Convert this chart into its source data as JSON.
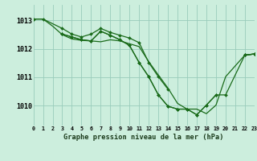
{
  "background_color": "#cceedd",
  "grid_color": "#99ccbb",
  "line_color": "#1a6b1a",
  "marker_color": "#1a6b1a",
  "title": "Graphe pression niveau de la mer (hPa)",
  "xlim": [
    0,
    23
  ],
  "ylim": [
    1009.3,
    1013.55
  ],
  "yticks": [
    1010,
    1011,
    1012,
    1013
  ],
  "xtick_labels": [
    "0",
    "1",
    "2",
    "3",
    "4",
    "5",
    "6",
    "7",
    "8",
    "9",
    "10",
    "11",
    "12",
    "13",
    "14",
    "15",
    "16",
    "17",
    "18",
    "19",
    "20",
    "21",
    "22",
    "23"
  ],
  "s1x": [
    0,
    1,
    2,
    3,
    4,
    5,
    6,
    7,
    8,
    9,
    10,
    11,
    12,
    13,
    14,
    15,
    16,
    17,
    18,
    19,
    20,
    22,
    23
  ],
  "s1y": [
    1013.05,
    1013.05,
    1012.8,
    1012.5,
    1012.35,
    1012.3,
    1012.28,
    1012.25,
    1012.32,
    1012.28,
    1012.18,
    1012.08,
    1011.55,
    1011.08,
    1010.62,
    1010.08,
    1009.88,
    1009.88,
    1009.72,
    1010.02,
    1011.02,
    1011.78,
    1011.82
  ],
  "s2x": [
    0,
    1,
    3,
    4,
    5,
    6,
    7,
    8,
    9,
    10,
    11,
    12,
    13,
    14
  ],
  "s2y": [
    1013.05,
    1013.05,
    1012.72,
    1012.52,
    1012.42,
    1012.52,
    1012.72,
    1012.58,
    1012.48,
    1012.38,
    1012.22,
    1011.52,
    1011.02,
    1010.58
  ],
  "s2ex": [
    22,
    23
  ],
  "s2ey": [
    1011.78,
    1011.82
  ],
  "s3x": [
    3,
    4,
    5,
    6,
    7,
    8,
    9,
    10,
    11,
    12,
    13,
    14,
    15,
    16,
    17,
    18,
    19
  ],
  "s3y": [
    1012.52,
    1012.42,
    1012.32,
    1012.28,
    1012.62,
    1012.48,
    1012.32,
    1012.12,
    1011.52,
    1011.02,
    1010.38,
    1009.98,
    1009.88,
    1009.88,
    1009.68,
    1010.02,
    1010.38
  ],
  "s3ex": [
    22,
    23
  ],
  "s3ey": [
    1011.78,
    1011.82
  ],
  "s4x": [
    3,
    4,
    5,
    6,
    7,
    8,
    9,
    10,
    11,
    12,
    13,
    14,
    15,
    16,
    17,
    18,
    19,
    20,
    22,
    23
  ],
  "s4y": [
    1012.52,
    1012.42,
    1012.32,
    1012.28,
    1012.62,
    1012.48,
    1012.32,
    1012.12,
    1011.52,
    1011.02,
    1010.38,
    1009.98,
    1009.88,
    1009.88,
    1009.68,
    1010.02,
    1010.38,
    1010.38,
    1011.78,
    1011.82
  ]
}
